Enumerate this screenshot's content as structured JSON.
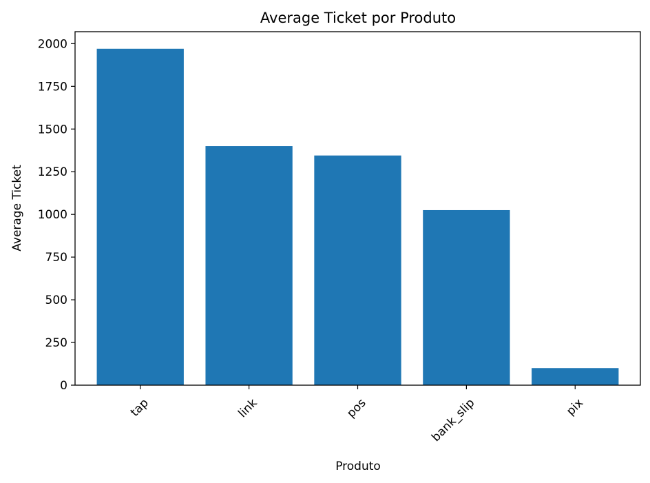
{
  "chart_data": {
    "type": "bar",
    "title": "Average Ticket por Produto",
    "xlabel": "Produto",
    "ylabel": "Average Ticket",
    "categories": [
      "tap",
      "link",
      "pos",
      "bank_slip",
      "pix"
    ],
    "values": [
      1970,
      1400,
      1345,
      1025,
      100
    ],
    "ylim": [
      0,
      2070
    ],
    "yticks": [
      0,
      250,
      500,
      750,
      1000,
      1250,
      1500,
      1750,
      2000
    ],
    "grid": false,
    "bar_color": "#1f77b4"
  }
}
